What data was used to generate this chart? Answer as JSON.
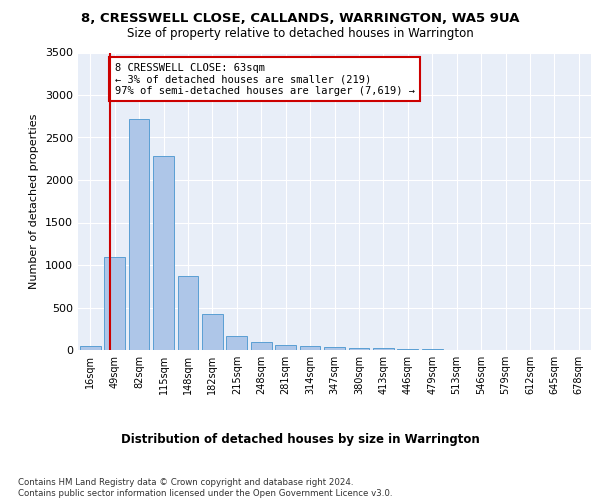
{
  "title1": "8, CRESSWELL CLOSE, CALLANDS, WARRINGTON, WA5 9UA",
  "title2": "Size of property relative to detached houses in Warrington",
  "xlabel": "Distribution of detached houses by size in Warrington",
  "ylabel": "Number of detached properties",
  "categories": [
    "16sqm",
    "49sqm",
    "82sqm",
    "115sqm",
    "148sqm",
    "182sqm",
    "215sqm",
    "248sqm",
    "281sqm",
    "314sqm",
    "347sqm",
    "380sqm",
    "413sqm",
    "446sqm",
    "479sqm",
    "513sqm",
    "546sqm",
    "579sqm",
    "612sqm",
    "645sqm",
    "678sqm"
  ],
  "values": [
    50,
    1100,
    2720,
    2280,
    870,
    420,
    170,
    90,
    60,
    50,
    35,
    25,
    20,
    15,
    10,
    5,
    3,
    2,
    1,
    1,
    1
  ],
  "bar_color": "#aec6e8",
  "bar_edge_color": "#5a9fd4",
  "vline_x": 1,
  "vline_color": "#cc0000",
  "annotation_text": "8 CRESSWELL CLOSE: 63sqm\n← 3% of detached houses are smaller (219)\n97% of semi-detached houses are larger (7,619) →",
  "annotation_box_color": "#ffffff",
  "annotation_box_edge": "#cc0000",
  "ylim": [
    0,
    3500
  ],
  "yticks": [
    0,
    500,
    1000,
    1500,
    2000,
    2500,
    3000,
    3500
  ],
  "bg_color": "#e8eef8",
  "footer": "Contains HM Land Registry data © Crown copyright and database right 2024.\nContains public sector information licensed under the Open Government Licence v3.0."
}
